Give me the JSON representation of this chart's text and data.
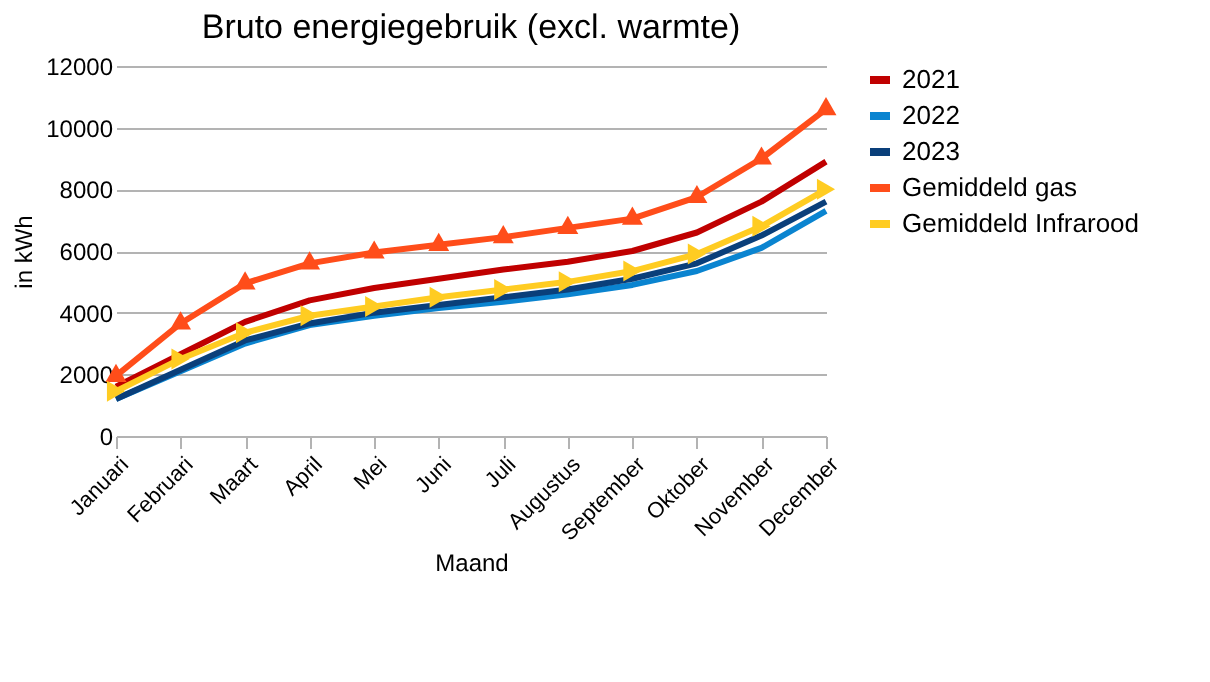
{
  "chart_data": {
    "type": "line",
    "title": "Bruto energiegebruik (excl. warmte)",
    "xlabel": "Maand",
    "ylabel": "in kWh",
    "categories": [
      "Januari",
      "Februari",
      "Maart",
      "April",
      "Mei",
      "Juni",
      "Juli",
      "Augustus",
      "September",
      "Oktober",
      "November",
      "December"
    ],
    "ylim": [
      0,
      12000
    ],
    "yticks": [
      0,
      2000,
      4000,
      6000,
      8000,
      10000,
      12000
    ],
    "grid": "y",
    "legend": "right",
    "series": [
      {
        "name": "2021",
        "color": "#c00000",
        "marker": "none",
        "values": [
          1600,
          2650,
          3700,
          4400,
          4800,
          5100,
          5400,
          5650,
          6000,
          6600,
          7600,
          8900
        ]
      },
      {
        "name": "2022",
        "color": "#0a84d0",
        "marker": "none",
        "values": [
          1200,
          2100,
          3000,
          3600,
          3900,
          4150,
          4350,
          4600,
          4900,
          5350,
          6100,
          7300
        ]
      },
      {
        "name": "2023",
        "color": "#0a3f7a",
        "marker": "none",
        "values": [
          1200,
          2150,
          3100,
          3650,
          4000,
          4250,
          4500,
          4750,
          5100,
          5600,
          6500,
          7600
        ]
      },
      {
        "name": "Gemiddeld gas",
        "color": "#ff4d1a",
        "marker": "triangle",
        "values": [
          1950,
          3650,
          4950,
          5600,
          5950,
          6200,
          6450,
          6750,
          7050,
          7750,
          9000,
          10600
        ]
      },
      {
        "name": "Gemiddeld Infrarood",
        "color": "#ffcc22",
        "marker": "triangle-right",
        "values": [
          1450,
          2500,
          3350,
          3900,
          4200,
          4500,
          4750,
          5000,
          5350,
          5900,
          6800,
          8000
        ]
      }
    ]
  }
}
